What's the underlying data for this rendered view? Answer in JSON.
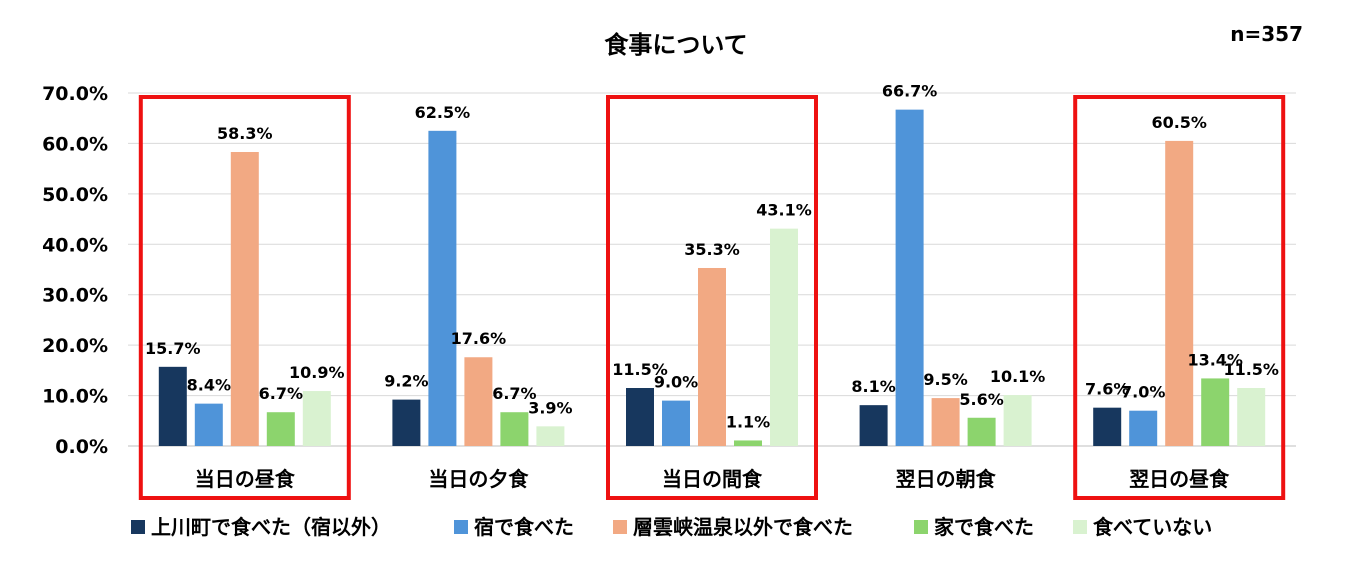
{
  "chart_data": {
    "type": "bar",
    "title": "食事について",
    "note": "n=357",
    "categories": [
      "当日の昼食",
      "当日の夕食",
      "当日の間食",
      "翌日の朝食",
      "翌日の昼食"
    ],
    "highlighted_categories": [
      "当日の昼食",
      "当日の間食",
      "翌日の昼食"
    ],
    "highlight_color": "#ee1111",
    "series": [
      {
        "name": "上川町で食べた（宿以外）",
        "color": "#17375e",
        "values": [
          15.7,
          9.2,
          11.5,
          8.1,
          7.6
        ]
      },
      {
        "name": "宿で食べた",
        "color": "#4f94d9",
        "values": [
          8.4,
          62.5,
          9.0,
          66.7,
          7.0
        ]
      },
      {
        "name": "層雲峡温泉以外で食べた",
        "color": "#f2a983",
        "values": [
          58.3,
          17.6,
          35.3,
          9.5,
          60.5
        ]
      },
      {
        "name": "家で食べた",
        "color": "#8cd46d",
        "values": [
          6.7,
          6.7,
          1.1,
          5.6,
          13.4
        ]
      },
      {
        "name": "食べていない",
        "color": "#d9f2d0",
        "values": [
          10.9,
          3.9,
          43.1,
          10.1,
          11.5
        ]
      }
    ],
    "yticks": [
      "0.0%",
      "10.0%",
      "20.0%",
      "30.0%",
      "40.0%",
      "50.0%",
      "60.0%",
      "70.0%"
    ],
    "ylim": [
      0,
      70
    ],
    "grid": true,
    "legend_position": "bottom"
  }
}
